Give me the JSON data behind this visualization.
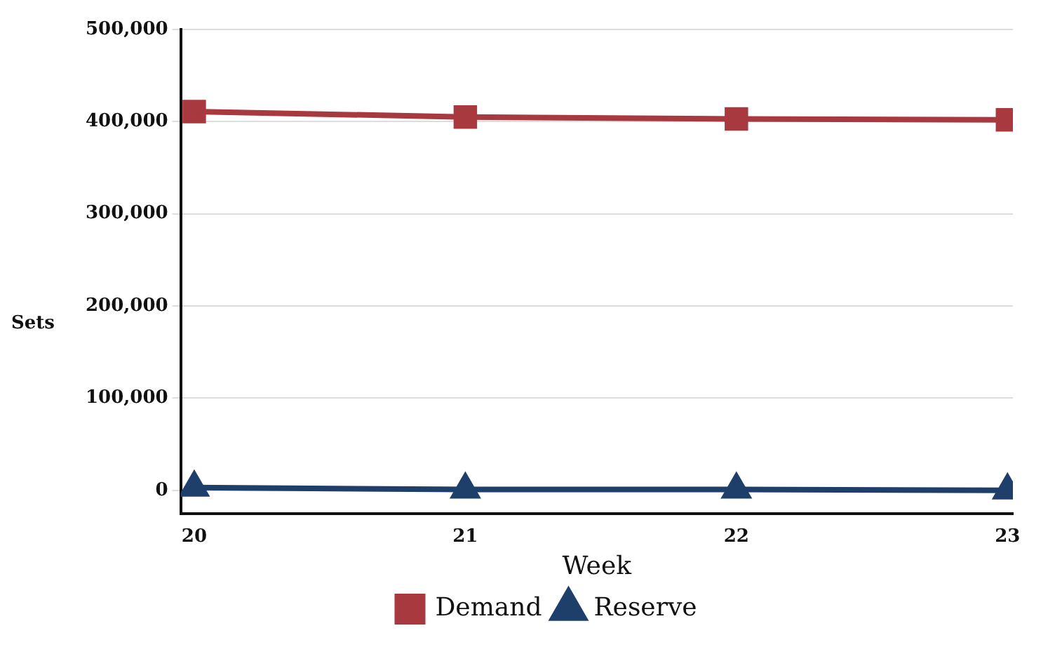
{
  "chart_data": {
    "type": "line",
    "xlabel": "Week",
    "ylabel": "Sets",
    "x": [
      20,
      21,
      22,
      23
    ],
    "xlim": [
      19.95,
      23.02
    ],
    "xticks": [
      20,
      21,
      22,
      23
    ],
    "ylim": [
      -25000,
      500000
    ],
    "yticks": [
      {
        "value": 0,
        "label": "0"
      },
      {
        "value": 100000,
        "label": "100,000"
      },
      {
        "value": 200000,
        "label": "200,000"
      },
      {
        "value": 300000,
        "label": "300,000"
      },
      {
        "value": 400000,
        "label": "400,000"
      },
      {
        "value": 500000,
        "label": "500,000"
      }
    ],
    "series": [
      {
        "name": "Demand",
        "color": "#a8393f",
        "marker": "square",
        "values": [
          411000,
          405000,
          403000,
          402000
        ]
      },
      {
        "name": "Reserve",
        "color": "#1f3f6b",
        "marker": "triangle",
        "values": [
          3000,
          1000,
          1000,
          0
        ]
      }
    ],
    "grid": "y",
    "legend": "bottom",
    "line_style": "solid"
  }
}
